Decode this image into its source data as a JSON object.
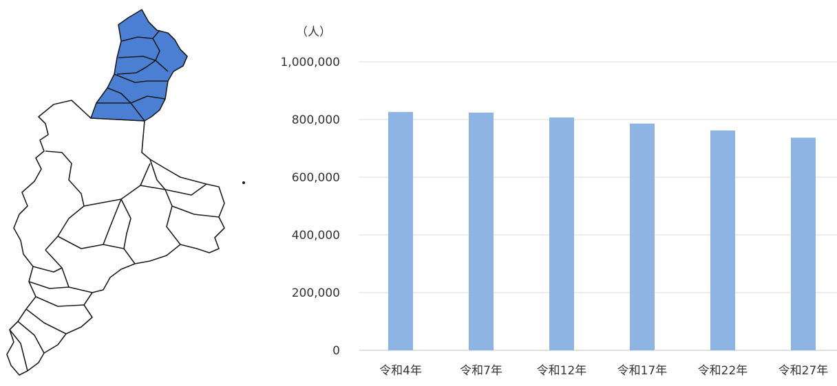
{
  "map": {
    "highlight_color": "#4a7fd4",
    "outline_color": "#1a1a1a"
  },
  "chart_data": {
    "type": "bar",
    "unit_label": "（人）",
    "categories": [
      "令和4年",
      "令和7年",
      "令和12年",
      "令和17年",
      "令和22年",
      "令和27年"
    ],
    "values": [
      826000,
      824000,
      807000,
      786000,
      762000,
      737000
    ],
    "ylim": [
      0,
      1000000
    ],
    "yticks": [
      0,
      200000,
      400000,
      600000,
      800000,
      1000000
    ],
    "ytick_labels": [
      "0",
      "200,000",
      "400,000",
      "600,000",
      "800,000",
      "1,000,000"
    ],
    "bar_color": "#8eb4e3",
    "grid": true,
    "legend": "none"
  }
}
